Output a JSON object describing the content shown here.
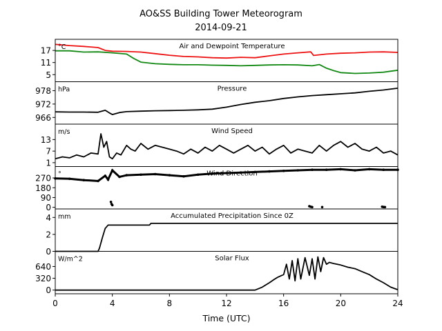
{
  "title_line1": "AO&SS Building Tower Meteorogram",
  "title_line2": "2014-09-21",
  "xlabel": "Time (UTC)",
  "colors": {
    "temperature": "#ee1111",
    "dewpoint": "#118811",
    "default": "#000000"
  },
  "chart_data": [
    {
      "id": "temp",
      "type": "line",
      "title": "Air and Dewpoint Temperature",
      "unit": "°C",
      "ylim": [
        1.5,
        22.5
      ],
      "yticks": [
        5,
        11,
        17
      ],
      "xlim": [
        0,
        24
      ],
      "series": [
        {
          "key": "temperature",
          "x": [
            0,
            1,
            2,
            3,
            3.5,
            4,
            5,
            6,
            7,
            8,
            9,
            10,
            11,
            12,
            13,
            14,
            15,
            16,
            17,
            17.9,
            18.1,
            19,
            20,
            21,
            22,
            23,
            24
          ],
          "y": [
            20,
            19.4,
            19,
            18.4,
            17,
            16.6,
            16.5,
            16.2,
            15.4,
            14.6,
            14,
            13.8,
            13.4,
            13.2,
            13.6,
            13.4,
            14.3,
            15.2,
            15.8,
            16.3,
            14.5,
            15.2,
            15.6,
            15.8,
            16.2,
            16.3,
            16.0
          ]
        },
        {
          "key": "dewpoint",
          "x": [
            0,
            1,
            2,
            3,
            4,
            5,
            5.5,
            6,
            7,
            8,
            9,
            10,
            11,
            12,
            13,
            14,
            15,
            16,
            17,
            18,
            18.5,
            19,
            19.5,
            20,
            21,
            22,
            23,
            24
          ],
          "y": [
            16.8,
            16.8,
            16.2,
            16.3,
            15.8,
            15.2,
            13,
            11.2,
            10.4,
            10.1,
            9.9,
            9.9,
            9.7,
            9.6,
            9.4,
            9.6,
            9.8,
            9.9,
            9.8,
            9.4,
            10.0,
            8.2,
            7.0,
            6.0,
            5.6,
            5.8,
            6.2,
            7.2
          ]
        }
      ]
    },
    {
      "id": "pressure",
      "type": "line",
      "title": "Pressure",
      "unit": "hPa",
      "ylim": [
        963,
        982
      ],
      "yticks": [
        966,
        972,
        978
      ],
      "xlim": [
        0,
        24
      ],
      "series": [
        {
          "key": "default",
          "x": [
            0,
            1,
            2,
            3,
            3.5,
            3.8,
            4,
            4.5,
            5,
            6,
            7,
            8,
            9,
            10,
            11,
            12,
            13,
            14,
            15,
            16,
            17,
            18,
            19,
            20,
            21,
            22,
            23,
            24
          ],
          "y": [
            968.5,
            968.4,
            968.4,
            968.3,
            969.2,
            968.0,
            967.3,
            968.2,
            968.6,
            968.8,
            969.0,
            969.1,
            969.2,
            969.4,
            969.7,
            970.6,
            971.8,
            972.8,
            973.5,
            974.5,
            975.2,
            975.8,
            976.2,
            976.6,
            977.0,
            977.7,
            978.3,
            979.1
          ]
        }
      ]
    },
    {
      "id": "wind-speed",
      "type": "line",
      "title": "Wind Speed",
      "unit": "m/s",
      "ylim": [
        -1,
        21
      ],
      "yticks": [
        1,
        7,
        13
      ],
      "xlim": [
        0,
        24
      ],
      "series": [
        {
          "key": "default",
          "x": [
            0,
            0.5,
            1,
            1.5,
            2,
            2.5,
            3,
            3.2,
            3.4,
            3.6,
            3.8,
            4,
            4.3,
            4.6,
            5,
            5.3,
            5.6,
            6,
            6.5,
            7,
            7.5,
            8,
            8.5,
            9,
            9.5,
            10,
            10.5,
            11,
            11.5,
            12,
            12.5,
            13,
            13.5,
            14,
            14.5,
            15,
            15.5,
            16,
            16.5,
            17,
            17.5,
            18,
            18.5,
            19,
            19.5,
            20,
            20.5,
            21,
            21.5,
            22,
            22.5,
            23,
            23.5,
            24
          ],
          "y": [
            3,
            4,
            3.5,
            5,
            4,
            6,
            5.5,
            16,
            9,
            12,
            4,
            3,
            6,
            5,
            10,
            8,
            7,
            11,
            8,
            10,
            9,
            8,
            7,
            5.5,
            8,
            6,
            9,
            7,
            10,
            8,
            6,
            8,
            10,
            7,
            9,
            5.5,
            8,
            10,
            6,
            8,
            7,
            6,
            10,
            7,
            10,
            12,
            9,
            11,
            8,
            7,
            9,
            6,
            7,
            5
          ]
        }
      ]
    },
    {
      "id": "wind-direction",
      "type": "scatter",
      "title": "Wind Direction",
      "unit": "°",
      "ylim": [
        -15,
        375
      ],
      "yticks": [
        0,
        90,
        180,
        270
      ],
      "xlim": [
        0,
        24
      ],
      "series": [
        {
          "key": "default",
          "x": [
            0,
            1,
            2,
            3,
            3.5,
            3.7,
            4,
            4.5,
            5,
            6,
            7,
            8,
            9,
            10,
            11,
            12,
            13,
            14,
            15,
            16,
            17,
            18,
            19,
            20,
            21,
            22,
            23,
            24
          ],
          "y": [
            265,
            262,
            250,
            242,
            290,
            255,
            340,
            280,
            295,
            300,
            305,
            295,
            285,
            300,
            310,
            315,
            320,
            325,
            330,
            335,
            340,
            345,
            345,
            350,
            340,
            350,
            345,
            345
          ]
        },
        {
          "key": "default",
          "x": [
            3.9,
            3.95,
            4.0,
            17.8,
            17.9,
            18.0,
            18.7,
            22.9,
            23.0,
            23.1
          ],
          "y": [
            50,
            30,
            20,
            10,
            5,
            2,
            2,
            5,
            3,
            2
          ]
        }
      ]
    },
    {
      "id": "precip",
      "type": "line",
      "title": "Accumulated Precipitation Since 0Z",
      "unit": "mm",
      "ylim": [
        0,
        5
      ],
      "yticks": [
        0,
        2,
        4
      ],
      "xlim": [
        0,
        24
      ],
      "series": [
        {
          "key": "default",
          "x": [
            0,
            3,
            3.1,
            3.3,
            3.5,
            3.7,
            6.6,
            6.7,
            24
          ],
          "y": [
            0,
            0,
            0.4,
            1.6,
            2.7,
            3.1,
            3.1,
            3.3,
            3.3
          ]
        }
      ]
    },
    {
      "id": "solar",
      "type": "line",
      "title": "Solar Flux",
      "unit": "W/m^2",
      "ylim": [
        -100,
        1050
      ],
      "yticks": [
        0,
        320,
        640
      ],
      "xlim": [
        0,
        24
      ],
      "series": [
        {
          "key": "default",
          "x": [
            0,
            14,
            14.5,
            15,
            15.3,
            15.6,
            16,
            16.2,
            16.4,
            16.6,
            16.8,
            17,
            17.2,
            17.5,
            17.8,
            18,
            18.2,
            18.4,
            18.6,
            18.8,
            19,
            19.2,
            19.5,
            20,
            20.5,
            21,
            21.5,
            22,
            22.5,
            23,
            23.5,
            24
          ],
          "y": [
            0,
            0,
            80,
            200,
            280,
            350,
            420,
            700,
            300,
            800,
            250,
            850,
            300,
            880,
            400,
            850,
            300,
            900,
            500,
            880,
            700,
            750,
            720,
            680,
            620,
            580,
            500,
            420,
            300,
            200,
            80,
            10
          ]
        }
      ]
    }
  ],
  "xticks": [
    0,
    4,
    8,
    12,
    16,
    20,
    24
  ]
}
